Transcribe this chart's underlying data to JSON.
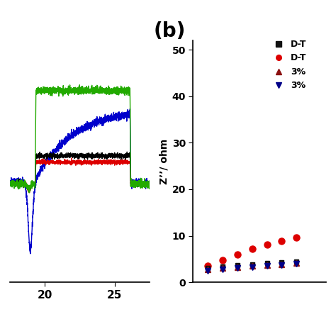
{
  "panel_a": {
    "xlim": [
      17.5,
      27.5
    ],
    "xticks": [
      20,
      25
    ],
    "colors": {
      "black": "#000000",
      "red": "#dd0000",
      "green": "#22aa00",
      "blue": "#0000cc"
    },
    "rise_t": 19.35,
    "fall_t": 26.1,
    "noise_seed": 42
  },
  "panel_b": {
    "title": "(b)",
    "ylabel": "Z’’/ ohm",
    "ylim": [
      0,
      52
    ],
    "yticks": [
      0,
      10,
      20,
      30,
      40,
      50
    ],
    "data_red": {
      "x": [
        1,
        2,
        3,
        4,
        5,
        6,
        7
      ],
      "y": [
        3.5,
        4.8,
        6.0,
        7.2,
        8.1,
        8.9,
        9.6
      ]
    },
    "data_black": {
      "x": [
        1,
        2,
        3,
        4,
        5,
        6,
        7
      ],
      "y": [
        3.0,
        3.4,
        3.7,
        3.9,
        4.1,
        4.3,
        4.5
      ]
    },
    "data_darkred": {
      "x": [
        1,
        2,
        3,
        4,
        5,
        6,
        7
      ],
      "y": [
        2.7,
        3.0,
        3.3,
        3.5,
        3.7,
        3.9,
        4.1
      ]
    },
    "data_darkblue": {
      "x": [
        1,
        2,
        3,
        4,
        5,
        6,
        7
      ],
      "y": [
        2.4,
        2.7,
        3.0,
        3.2,
        3.5,
        3.7,
        4.0
      ]
    },
    "legend": [
      {
        "marker": "s",
        "color": "#111111",
        "label": "D-T"
      },
      {
        "marker": "o",
        "color": "#dd0000",
        "label": "D-T"
      },
      {
        "marker": "^",
        "color": "#8B1010",
        "label": "3%"
      },
      {
        "marker": "v",
        "color": "#000088",
        "label": "3%"
      }
    ]
  },
  "background_color": "#ffffff"
}
